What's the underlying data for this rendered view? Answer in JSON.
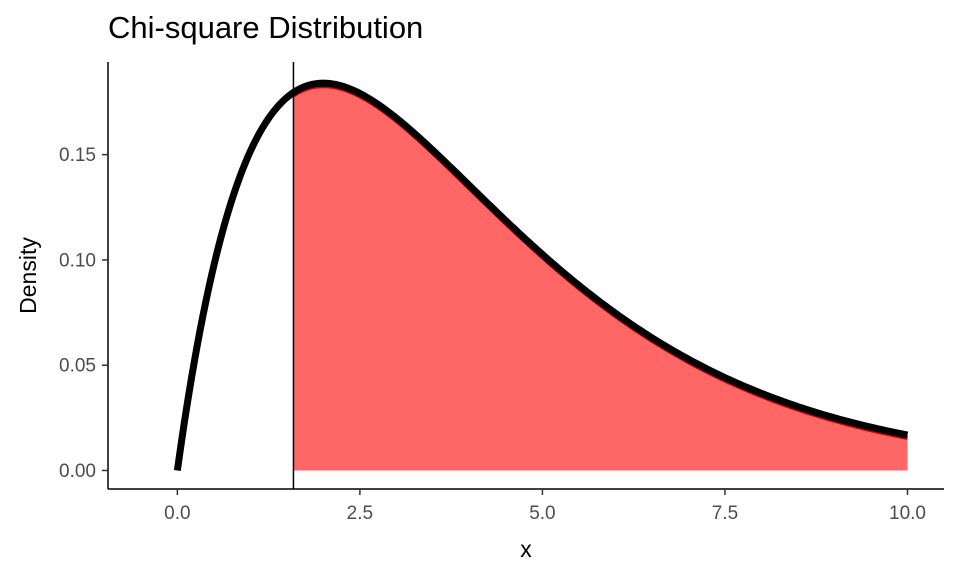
{
  "chart_data": {
    "type": "area",
    "title": "Chi-square Distribution",
    "xlabel": "x",
    "ylabel": "Density",
    "distribution": "chi-square",
    "degrees_of_freedom": 4,
    "x_range": [
      0,
      10
    ],
    "xlim": [
      -0.95,
      10.5
    ],
    "ylim": [
      -0.0088,
      0.194
    ],
    "x_ticks": [
      {
        "value": 0,
        "label": "0.0"
      },
      {
        "value": 2.5,
        "label": "2.5"
      },
      {
        "value": 5,
        "label": "5.0"
      },
      {
        "value": 7.5,
        "label": "7.5"
      },
      {
        "value": 10,
        "label": "10.0"
      }
    ],
    "y_ticks": [
      {
        "value": 0,
        "label": "0.00"
      },
      {
        "value": 0.05,
        "label": "0.05"
      },
      {
        "value": 0.1,
        "label": "0.10"
      },
      {
        "value": 0.15,
        "label": "0.15"
      }
    ],
    "vertical_line_x": 1.59,
    "shaded_region": {
      "from": 1.59,
      "to": 10,
      "color": "#ff6666"
    },
    "curve_color": "#000000",
    "shaded_edge_color": "#cc0000",
    "grid": false
  }
}
